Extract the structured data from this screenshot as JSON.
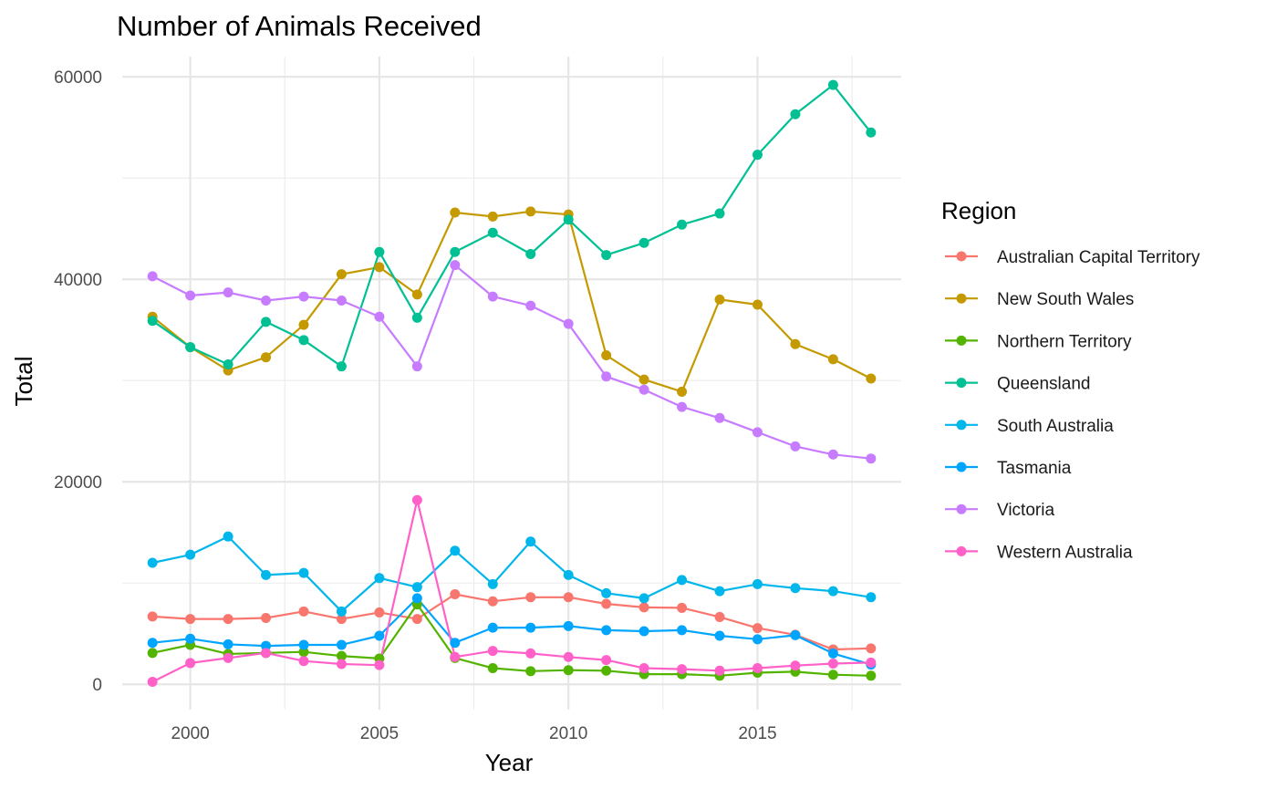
{
  "chart_data": {
    "type": "line",
    "title": "Number of Animals Received",
    "xlabel": "Year",
    "ylabel": "Total",
    "xlim": [
      1998.2,
      2018.8
    ],
    "ylim": [
      -2500,
      62000
    ],
    "x_ticks": [
      2000,
      2005,
      2010,
      2015
    ],
    "y_ticks": [
      0,
      20000,
      40000,
      60000
    ],
    "grid": true,
    "legend_title": "Region",
    "legend_position": "right",
    "x": [
      1999,
      2000,
      2001,
      2002,
      2003,
      2004,
      2005,
      2006,
      2007,
      2008,
      2009,
      2010,
      2011,
      2012,
      2013,
      2014,
      2015,
      2016,
      2017,
      2018
    ],
    "series": [
      {
        "name": "Australian Capital Territory",
        "color": "#F8766D",
        "values": [
          6700,
          6450,
          6450,
          6550,
          7200,
          6450,
          7100,
          6450,
          8900,
          8200,
          8600,
          8600,
          7950,
          7600,
          7550,
          6650,
          5550,
          4900,
          3450,
          3550
        ]
      },
      {
        "name": "New South Wales",
        "color": "#C49A00",
        "values": [
          36300,
          33300,
          31000,
          32300,
          35500,
          40500,
          41200,
          38500,
          46600,
          46200,
          46700,
          46400,
          32500,
          30100,
          28900,
          38000,
          37500,
          33600,
          32100,
          30200
        ]
      },
      {
        "name": "Northern Territory",
        "color": "#53B400",
        "values": [
          3100,
          3900,
          3000,
          3100,
          3200,
          2800,
          2550,
          7900,
          2600,
          1600,
          1300,
          1400,
          1350,
          1000,
          1000,
          850,
          1150,
          1250,
          950,
          850
        ]
      },
      {
        "name": "Queensland",
        "color": "#00C094",
        "values": [
          35900,
          33300,
          31600,
          35800,
          34000,
          31400,
          42700,
          36200,
          42700,
          44600,
          42500,
          45900,
          42400,
          43600,
          45400,
          46500,
          52300,
          56300,
          59200,
          54500
        ]
      },
      {
        "name": "South Australia",
        "color": "#00B6EB",
        "values": [
          12000,
          12800,
          14600,
          10800,
          11000,
          7200,
          10500,
          9600,
          13200,
          9900,
          14100,
          10800,
          9000,
          8500,
          10300,
          9200,
          9900,
          9500,
          9200,
          8600
        ]
      },
      {
        "name": "Tasmania",
        "color": "#00A5FF",
        "values": [
          4100,
          4500,
          3950,
          3800,
          3900,
          3900,
          4800,
          8500,
          4100,
          5600,
          5600,
          5750,
          5350,
          5250,
          5350,
          4800,
          4450,
          4850,
          3050,
          1950
        ]
      },
      {
        "name": "Victoria",
        "color": "#C77CFF",
        "values": [
          40300,
          38400,
          38700,
          37900,
          38300,
          37900,
          36300,
          31400,
          41400,
          38300,
          37400,
          35600,
          30400,
          29100,
          27400,
          26300,
          24900,
          23500,
          22700,
          22300
        ]
      },
      {
        "name": "Western Australia",
        "color": "#FF61C9",
        "values": [
          250,
          2100,
          2600,
          3100,
          2300,
          2000,
          1900,
          18200,
          2700,
          3300,
          3050,
          2700,
          2400,
          1600,
          1500,
          1350,
          1600,
          1850,
          2050,
          2150
        ]
      }
    ]
  }
}
